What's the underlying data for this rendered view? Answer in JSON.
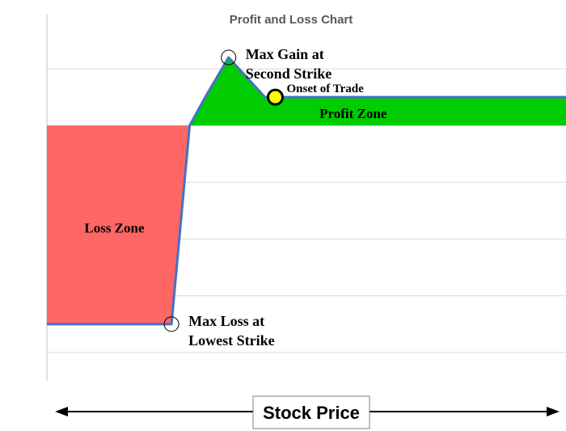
{
  "chart_data": {
    "type": "line",
    "title": "Profit and Loss Chart",
    "xlabel": "Stock Price",
    "ylabel": "",
    "grid": true,
    "legend": "none",
    "ylim": [
      -4.5,
      1.5
    ],
    "xlim": [
      0,
      10
    ],
    "series": [
      {
        "x": [
          0,
          2.4,
          2.75,
          3.05,
          3.5,
          4.2,
          10
        ],
        "y": [
          -3.5,
          -3.5,
          0,
          0.5,
          1.2,
          0.5,
          0.5
        ]
      }
    ],
    "zones": [
      {
        "label": "Loss Zone",
        "color": "#ff6666"
      },
      {
        "label": "Profit Zone",
        "color": "#00cc00"
      }
    ],
    "annotations": [
      {
        "label": "Max Gain at",
        "label2": "Second Strike",
        "x": 3.5,
        "y": 1.2,
        "marker": "open-circle"
      },
      {
        "label": "Max Loss at",
        "label2": "Lowest Strike",
        "x": 2.4,
        "y": -3.5,
        "marker": "open-circle"
      },
      {
        "label": "Onset of Trade",
        "x": 4.4,
        "y": 0.5,
        "marker": "yellow-dot"
      }
    ],
    "colors": {
      "line": "#4472c4",
      "grid": "#d9d9d9",
      "axis": "#bfbfbf"
    }
  }
}
